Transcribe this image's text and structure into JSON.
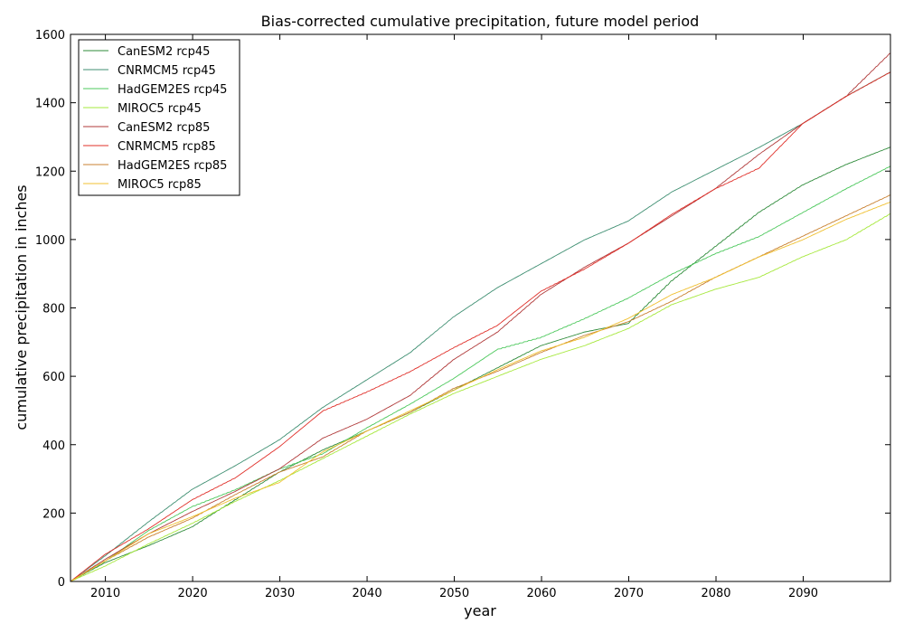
{
  "chart_data": {
    "type": "line",
    "title": "Bias-corrected cumulative precipitation, future model period",
    "xlabel": "year",
    "ylabel": "cumulative precipitation in inches",
    "xlim": [
      2006,
      2100
    ],
    "ylim": [
      0,
      1600
    ],
    "xticks": [
      2010,
      2020,
      2030,
      2040,
      2050,
      2060,
      2070,
      2080,
      2090
    ],
    "yticks": [
      0,
      200,
      400,
      600,
      800,
      1000,
      1200,
      1400,
      1600
    ],
    "grid": false,
    "legend_position": "top-left",
    "series": [
      {
        "name": "CanESM2 rcp45",
        "color": "#2e8b3a",
        "x": [
          2006,
          2010,
          2015,
          2020,
          2025,
          2030,
          2035,
          2040,
          2045,
          2050,
          2055,
          2060,
          2065,
          2070,
          2075,
          2080,
          2085,
          2090,
          2095,
          2100
        ],
        "y": [
          0,
          55,
          105,
          160,
          240,
          320,
          385,
          440,
          495,
          560,
          625,
          690,
          730,
          755,
          880,
          980,
          1080,
          1160,
          1220,
          1270
        ]
      },
      {
        "name": "CNRMCM5 rcp45",
        "color": "#3f8f72",
        "x": [
          2006,
          2010,
          2015,
          2020,
          2025,
          2030,
          2035,
          2040,
          2045,
          2050,
          2055,
          2060,
          2065,
          2070,
          2075,
          2080,
          2085,
          2090,
          2095,
          2100
        ],
        "y": [
          0,
          75,
          175,
          270,
          340,
          415,
          510,
          590,
          670,
          775,
          860,
          930,
          1000,
          1055,
          1140,
          1205,
          1270,
          1340,
          1420,
          1490
        ]
      },
      {
        "name": "HadGEM2ES rcp45",
        "color": "#4cc85c",
        "x": [
          2006,
          2010,
          2015,
          2020,
          2025,
          2030,
          2035,
          2040,
          2045,
          2050,
          2055,
          2060,
          2065,
          2070,
          2075,
          2080,
          2085,
          2090,
          2095,
          2100
        ],
        "y": [
          0,
          60,
          150,
          220,
          270,
          330,
          375,
          450,
          520,
          595,
          680,
          715,
          770,
          830,
          900,
          960,
          1010,
          1080,
          1150,
          1215
        ]
      },
      {
        "name": "MIROC5 rcp45",
        "color": "#a6e83c",
        "x": [
          2006,
          2010,
          2015,
          2020,
          2025,
          2030,
          2035,
          2040,
          2045,
          2050,
          2055,
          2060,
          2065,
          2070,
          2075,
          2080,
          2085,
          2090,
          2095,
          2100
        ],
        "y": [
          0,
          45,
          110,
          170,
          235,
          295,
          360,
          425,
          490,
          550,
          600,
          650,
          690,
          740,
          810,
          855,
          890,
          950,
          1000,
          1075
        ]
      },
      {
        "name": "CanESM2 rcp85",
        "color": "#b03a3a",
        "x": [
          2006,
          2010,
          2015,
          2020,
          2025,
          2030,
          2035,
          2040,
          2045,
          2050,
          2055,
          2060,
          2065,
          2070,
          2075,
          2080,
          2085,
          2090,
          2095,
          2100
        ],
        "y": [
          0,
          65,
          140,
          205,
          265,
          330,
          420,
          475,
          545,
          650,
          730,
          840,
          920,
          990,
          1070,
          1150,
          1250,
          1340,
          1420,
          1545
        ]
      },
      {
        "name": "CNRMCM5 rcp85",
        "color": "#e0302a",
        "x": [
          2006,
          2010,
          2015,
          2020,
          2025,
          2030,
          2035,
          2040,
          2045,
          2050,
          2055,
          2060,
          2065,
          2070,
          2075,
          2080,
          2085,
          2090,
          2095,
          2100
        ],
        "y": [
          0,
          80,
          155,
          240,
          305,
          395,
          500,
          555,
          615,
          685,
          750,
          850,
          915,
          990,
          1075,
          1150,
          1210,
          1340,
          1420,
          1490
        ]
      },
      {
        "name": "HadGEM2ES rcp85",
        "color": "#c98030",
        "x": [
          2006,
          2010,
          2015,
          2020,
          2025,
          2030,
          2035,
          2040,
          2045,
          2050,
          2055,
          2060,
          2065,
          2070,
          2075,
          2080,
          2085,
          2090,
          2095,
          2100
        ],
        "y": [
          0,
          60,
          130,
          185,
          255,
          320,
          365,
          440,
          495,
          565,
          615,
          670,
          720,
          760,
          820,
          890,
          950,
          1010,
          1070,
          1130
        ]
      },
      {
        "name": "MIROC5 rcp85",
        "color": "#f0c030",
        "x": [
          2006,
          2010,
          2015,
          2020,
          2025,
          2030,
          2035,
          2040,
          2045,
          2050,
          2055,
          2060,
          2065,
          2070,
          2075,
          2080,
          2085,
          2090,
          2095,
          2100
        ],
        "y": [
          0,
          60,
          140,
          190,
          245,
          290,
          380,
          440,
          500,
          560,
          620,
          675,
          715,
          770,
          840,
          890,
          950,
          1000,
          1060,
          1110
        ]
      }
    ]
  }
}
